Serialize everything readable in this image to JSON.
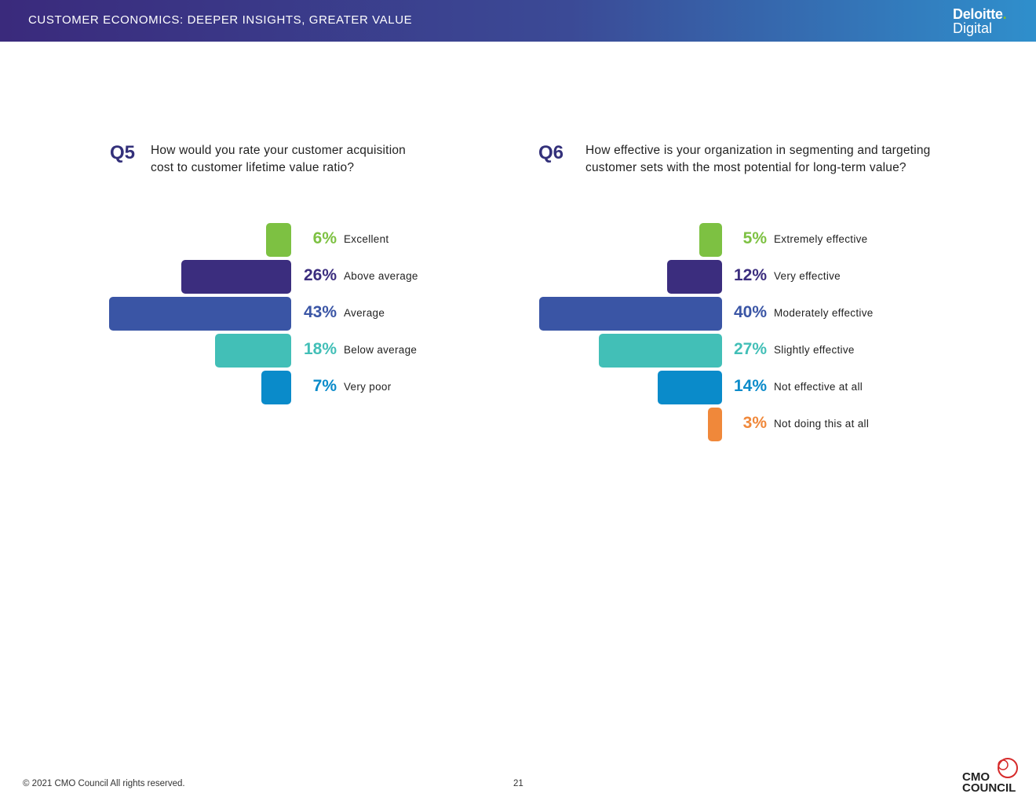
{
  "header": {
    "title": "CUSTOMER ECONOMICS: DEEPER INSIGHTS, GREATER VALUE",
    "logo_line1": "Deloitte",
    "logo_dot": ".",
    "logo_line2": "Digital"
  },
  "colors": {
    "header_start": "#3a2a7c",
    "header_end": "#2f8fcc",
    "green": "#7dc142",
    "purple": "#3b2d7e",
    "blue": "#3a55a5",
    "teal": "#42bfb7",
    "sky": "#0a8bca",
    "orange": "#f0883a"
  },
  "chart_data": [
    {
      "type": "bar",
      "orientation": "horizontal",
      "question_number": "Q5",
      "question": "How would you rate your customer acquisition cost to customer lifetime value ratio?",
      "question_lines": [
        "How would you rate your customer acquisition",
        "cost to customer lifetime value ratio?"
      ],
      "categories": [
        "Excellent",
        "Above average",
        "Average",
        "Below average",
        "Very poor"
      ],
      "values": [
        6,
        26,
        43,
        18,
        7
      ],
      "value_labels": [
        "6%",
        "26%",
        "43%",
        "18%",
        "7%"
      ],
      "colors": [
        "#7dc142",
        "#3b2d7e",
        "#3a55a5",
        "#42bfb7",
        "#0a8bca"
      ],
      "unit": "%"
    },
    {
      "type": "bar",
      "orientation": "horizontal",
      "question_number": "Q6",
      "question": "How effective is your organization in segmenting and targeting customer sets with the most potential for long-term value?",
      "question_lines": [
        "How effective is your organization in segmenting and targeting",
        "customer sets with the most potential for long-term value?"
      ],
      "categories": [
        "Extremely effective",
        "Very effective",
        "Moderately effective",
        "Slightly effective",
        "Not effective at all",
        "Not doing this at all"
      ],
      "values": [
        5,
        12,
        40,
        27,
        14,
        3
      ],
      "value_labels": [
        "5%",
        "12%",
        "40%",
        "27%",
        "14%",
        "3%"
      ],
      "colors": [
        "#7dc142",
        "#3b2d7e",
        "#3a55a5",
        "#42bfb7",
        "#0a8bca",
        "#f0883a"
      ],
      "unit": "%"
    }
  ],
  "footer": {
    "copyright": "© 2021 CMO Council  All rights reserved.",
    "page_number": "21",
    "cmo_logo_line1": "CMO",
    "cmo_logo_line2": "COUNCIL"
  }
}
